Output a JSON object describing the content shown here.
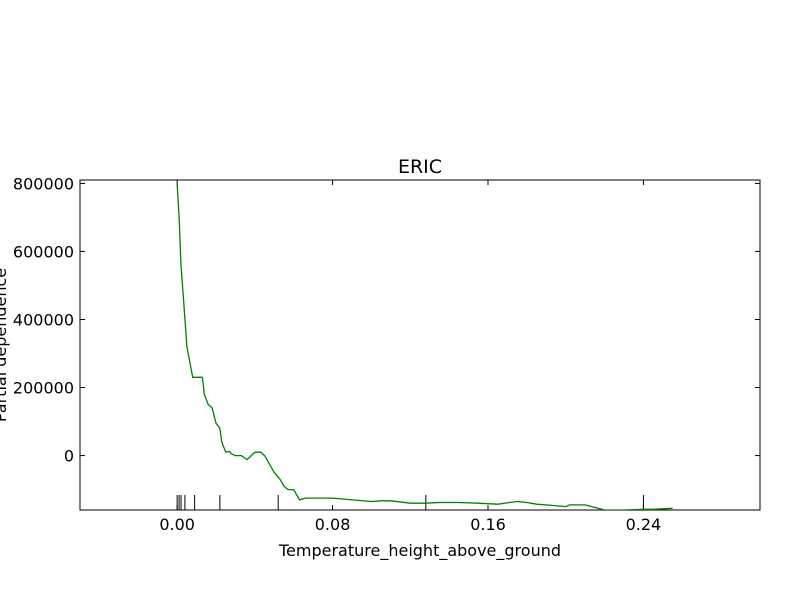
{
  "chart_data": {
    "type": "line",
    "title": "ERIC",
    "xlabel": "Temperature_height_above_ground",
    "ylabel": "Partial dependence",
    "xlim": [
      -0.05,
      0.3
    ],
    "ylim": [
      -160000,
      810000
    ],
    "xticks": [
      0.0,
      0.08,
      0.16,
      0.24
    ],
    "xtick_labels": [
      "0.00",
      "0.08",
      "0.16",
      "0.24"
    ],
    "yticks": [
      0,
      200000,
      400000,
      600000,
      800000
    ],
    "ytick_labels": [
      "0",
      "200000",
      "400000",
      "600000",
      "800000"
    ],
    "grid": false,
    "series": [
      {
        "color": "#008000",
        "x": [
          0.0,
          0.001,
          0.002,
          0.003,
          0.005,
          0.008,
          0.013,
          0.014,
          0.016,
          0.018,
          0.02,
          0.022,
          0.023,
          0.025,
          0.027,
          0.028,
          0.03,
          0.033,
          0.036,
          0.04,
          0.043,
          0.045,
          0.05,
          0.053,
          0.055,
          0.057,
          0.06,
          0.063,
          0.066,
          0.068,
          0.07,
          0.072,
          0.075,
          0.08,
          0.1,
          0.105,
          0.11,
          0.12,
          0.126,
          0.128,
          0.135,
          0.145,
          0.155,
          0.165,
          0.175,
          0.18,
          0.185,
          0.19,
          0.2,
          0.202,
          0.21,
          0.22,
          0.224,
          0.23,
          0.24,
          0.245,
          0.255
        ],
        "y": [
          800000,
          700000,
          560000,
          480000,
          320000,
          230000,
          230000,
          180000,
          150000,
          140000,
          95000,
          80000,
          40000,
          10000,
          12000,
          5000,
          0,
          0,
          -12000,
          10000,
          10000,
          0,
          -50000,
          -70000,
          -90000,
          -100000,
          -100000,
          -130000,
          -125000,
          -125000,
          -125000,
          -125000,
          -125000,
          -125000,
          -135000,
          -133000,
          -133000,
          -140000,
          -140000,
          -140000,
          -138000,
          -138000,
          -140000,
          -143000,
          -135000,
          -138000,
          -143000,
          -145000,
          -150000,
          -145000,
          -145000,
          -160000,
          -160000,
          -160000,
          -158000,
          -158000,
          -155000
        ]
      }
    ],
    "rug_x": [
      0.0,
      0.001,
      0.002,
      0.004,
      0.009,
      0.022,
      0.052,
      0.128,
      0.24
    ]
  }
}
